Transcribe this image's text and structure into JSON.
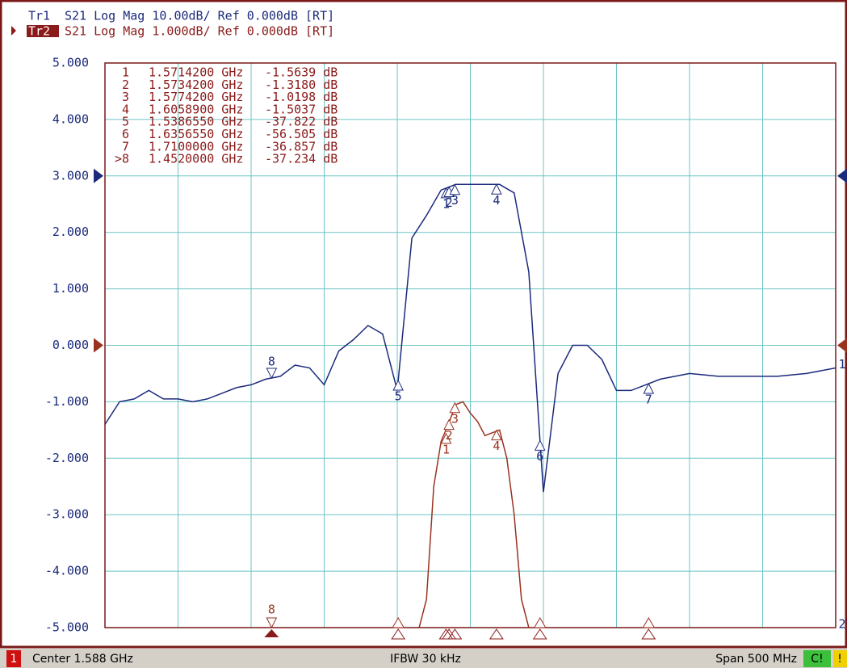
{
  "chart_data": {
    "type": "line",
    "series": [
      {
        "name": "Tr1",
        "settings": "S21 Log Mag 10.00dB/ Ref 0.000dB [RT]",
        "color": "#1c2a7c",
        "axis": "y2",
        "ref": 0,
        "x": [
          1.338,
          1.348,
          1.358,
          1.368,
          1.378,
          1.388,
          1.398,
          1.408,
          1.418,
          1.428,
          1.438,
          1.448,
          1.458,
          1.468,
          1.478,
          1.488,
          1.498,
          1.508,
          1.518,
          1.528,
          1.538,
          1.548,
          1.558,
          1.568,
          1.578,
          1.588,
          1.598,
          1.608,
          1.618,
          1.628,
          1.638,
          1.648,
          1.658,
          1.668,
          1.678,
          1.688,
          1.698,
          1.708,
          1.718,
          1.738,
          1.758,
          1.778,
          1.798,
          1.818,
          1.838
        ],
        "values": [
          -44,
          -40,
          -39.5,
          -38,
          -39.5,
          -39.5,
          -40,
          -39.5,
          -38.5,
          -37.5,
          -37,
          -36,
          -35.5,
          -33.5,
          -34,
          -37,
          -31,
          -29,
          -26.5,
          -28,
          -38,
          -11,
          -7,
          -2.5,
          -1.5,
          -1.5,
          -1.5,
          -1.5,
          -3,
          -17,
          -56,
          -35,
          -30,
          -30,
          -32.5,
          -38,
          -38,
          -37,
          -36,
          -35,
          -35.5,
          -35.5,
          -35.5,
          -35,
          -34
        ]
      },
      {
        "name": "Tr2",
        "settings": "S21 Log Mag 1.000dB/ Ref 0.000dB [RT]",
        "color": "#9a3220",
        "ref": 0,
        "x": [
          1.553,
          1.558,
          1.563,
          1.568,
          1.573,
          1.578,
          1.583,
          1.588,
          1.593,
          1.598,
          1.603,
          1.608,
          1.613,
          1.618,
          1.623,
          1.628
        ],
        "values": [
          -5,
          -4.5,
          -2.5,
          -1.7,
          -1.4,
          -1.05,
          -1.0,
          -1.2,
          -1.35,
          -1.6,
          -1.55,
          -1.5,
          -2.0,
          -3.0,
          -4.5,
          -5
        ]
      }
    ],
    "xlim": [
      1.338,
      1.838
    ],
    "ylim": [
      -5,
      5
    ],
    "yticks": [
      {
        "value": 5,
        "label": "5.000"
      },
      {
        "value": 4,
        "label": "4.000"
      },
      {
        "value": 3,
        "label": "3.000"
      },
      {
        "value": 2,
        "label": "2.000"
      },
      {
        "value": 1,
        "label": "1.000"
      },
      {
        "value": 0,
        "label": "0.000"
      },
      {
        "value": -1,
        "label": "-1.000"
      },
      {
        "value": -2,
        "label": "-2.000"
      },
      {
        "value": -3,
        "label": "-3.000"
      },
      {
        "value": -4,
        "label": "-4.000"
      },
      {
        "value": -5,
        "label": "-5.000"
      }
    ],
    "y2lim": [
      -80,
      20
    ],
    "grid": true,
    "markers": [
      {
        "tag": "1",
        "label": "1",
        "x": 1.57142,
        "x_label": "1.5714200 GHz",
        "value": -1.5639,
        "value_label": "-1.5639 dB"
      },
      {
        "tag": "2",
        "label": "2",
        "x": 1.57342,
        "x_label": "1.5734200 GHz",
        "value": -1.318,
        "value_label": "-1.3180 dB"
      },
      {
        "tag": "3",
        "label": "3",
        "x": 1.57742,
        "x_label": "1.5774200 GHz",
        "value": -1.0198,
        "value_label": "-1.0198 dB"
      },
      {
        "tag": "4",
        "label": "4",
        "x": 1.60589,
        "x_label": "1.6058900 GHz",
        "value": -1.5037,
        "value_label": "-1.5037 dB"
      },
      {
        "tag": "5",
        "label": "5",
        "x": 1.538655,
        "x_label": "1.5386550 GHz",
        "value": -37.822,
        "value_label": "-37.822 dB"
      },
      {
        "tag": "6",
        "label": "6",
        "x": 1.635655,
        "x_label": "1.6356550 GHz",
        "value": -56.505,
        "value_label": "-56.505 dB"
      },
      {
        "tag": "7",
        "label": "7",
        "x": 1.71,
        "x_label": "1.7100000 GHz",
        "value": -36.857,
        "value_label": "-36.857 dB"
      },
      {
        "tag": "8",
        "label": ">8",
        "x": 1.452,
        "x_label": "1.4520000 GHz",
        "value": -37.234,
        "value_label": "-37.234 dB"
      }
    ],
    "trace_tags": [
      "1",
      "2"
    ]
  },
  "status_bar": {
    "channel": "1",
    "center": "Center 1.588 GHz",
    "ifbw": "IFBW 30 kHz",
    "span": "Span 500 MHz",
    "cal": "C!",
    "flag": "!"
  }
}
